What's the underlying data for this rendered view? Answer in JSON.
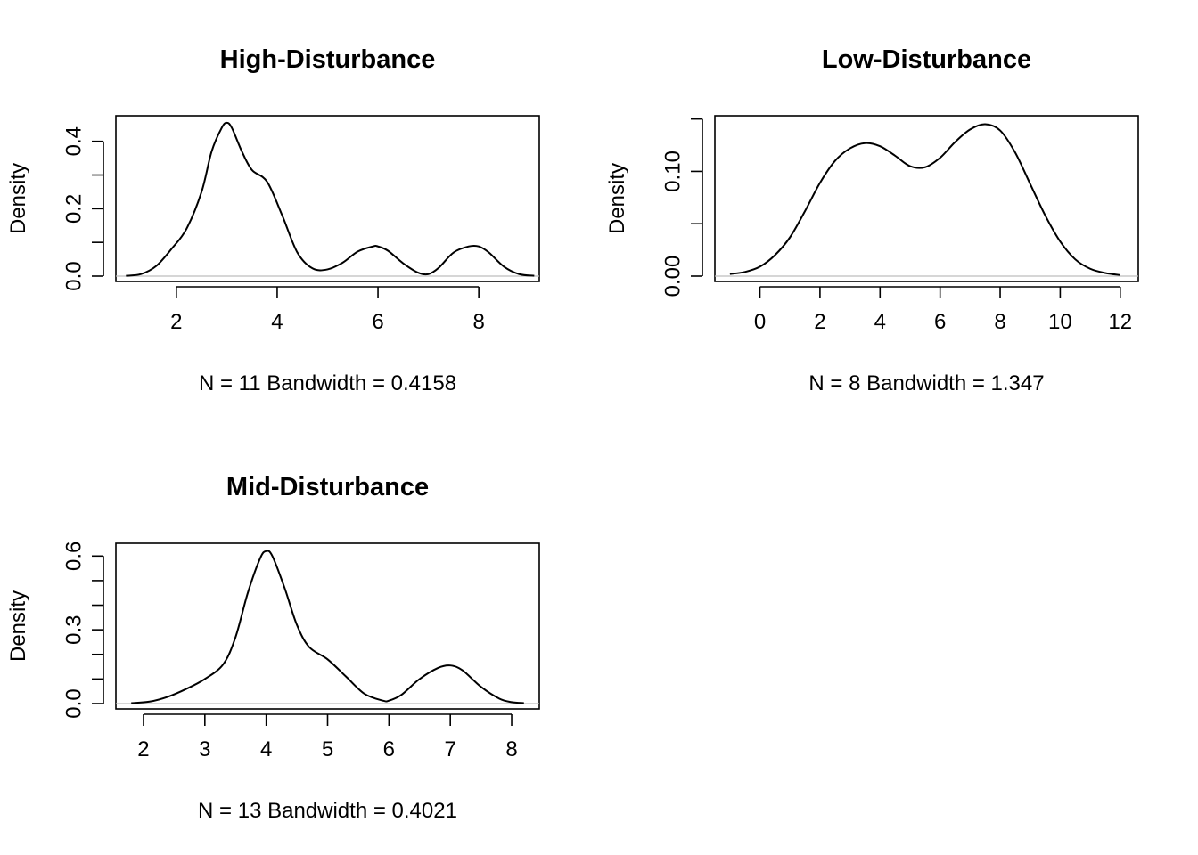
{
  "chart_data": [
    {
      "type": "line",
      "title": "High-Disturbance",
      "ylabel": "Density",
      "subtitle": "N = 11   Bandwidth = 0.4158",
      "xlim": [
        0.8,
        9.2
      ],
      "ylim": [
        0,
        0.46
      ],
      "xticks": [
        2,
        4,
        6,
        8
      ],
      "xtick_labels": [
        "2",
        "4",
        "6",
        "8"
      ],
      "yticks": [
        0.0,
        0.1,
        0.2,
        0.3,
        0.4
      ],
      "ytick_labels": [
        "0.0",
        "",
        "0.2",
        "",
        "0.4"
      ],
      "x": [
        1.0,
        1.3,
        1.6,
        1.9,
        2.2,
        2.5,
        2.7,
        2.9,
        3.0,
        3.1,
        3.3,
        3.5,
        3.8,
        4.1,
        4.4,
        4.7,
        5.0,
        5.3,
        5.6,
        5.9,
        6.0,
        6.2,
        6.5,
        6.8,
        7.0,
        7.2,
        7.5,
        7.8,
        8.0,
        8.2,
        8.5,
        8.8,
        9.1
      ],
      "y": [
        0.001,
        0.006,
        0.03,
        0.08,
        0.14,
        0.25,
        0.37,
        0.44,
        0.455,
        0.44,
        0.37,
        0.315,
        0.28,
        0.18,
        0.07,
        0.023,
        0.02,
        0.04,
        0.073,
        0.088,
        0.088,
        0.075,
        0.038,
        0.01,
        0.006,
        0.024,
        0.07,
        0.088,
        0.088,
        0.07,
        0.028,
        0.006,
        0.001
      ]
    },
    {
      "type": "line",
      "title": "Low-Disturbance",
      "ylabel": "Density",
      "subtitle": "N = 8   Bandwidth = 1.347",
      "xlim": [
        -1.5,
        12.6
      ],
      "ylim": [
        0,
        0.148
      ],
      "xticks": [
        0,
        2,
        4,
        6,
        8,
        10,
        12
      ],
      "xtick_labels": [
        "0",
        "2",
        "4",
        "6",
        "8",
        "10",
        "12"
      ],
      "yticks": [
        0.0,
        0.05,
        0.1,
        0.15
      ],
      "ytick_labels": [
        "0.00",
        "",
        "0.10",
        ""
      ],
      "x": [
        -1.0,
        -0.5,
        0.0,
        0.5,
        1.0,
        1.5,
        2.0,
        2.5,
        3.0,
        3.5,
        4.0,
        4.5,
        5.0,
        5.5,
        6.0,
        6.5,
        7.0,
        7.5,
        8.0,
        8.5,
        9.0,
        9.5,
        10.0,
        10.5,
        11.0,
        11.5,
        12.0
      ],
      "y": [
        0.002,
        0.004,
        0.009,
        0.02,
        0.037,
        0.062,
        0.089,
        0.11,
        0.122,
        0.127,
        0.124,
        0.115,
        0.105,
        0.104,
        0.113,
        0.128,
        0.14,
        0.145,
        0.139,
        0.118,
        0.088,
        0.058,
        0.033,
        0.016,
        0.007,
        0.003,
        0.001
      ]
    },
    {
      "type": "line",
      "title": "Mid-Disturbance",
      "ylabel": "Density",
      "subtitle": "N = 13   Bandwidth = 0.4021",
      "xlim": [
        1.55,
        8.45
      ],
      "ylim": [
        0,
        0.63
      ],
      "xticks": [
        2,
        3,
        4,
        5,
        6,
        7,
        8
      ],
      "xtick_labels": [
        "2",
        "3",
        "4",
        "5",
        "6",
        "7",
        "8"
      ],
      "yticks": [
        0.0,
        0.1,
        0.2,
        0.3,
        0.4,
        0.5,
        0.6
      ],
      "ytick_labels": [
        "0.0",
        "",
        "",
        "0.3",
        "",
        "",
        "0.6"
      ],
      "x": [
        1.8,
        2.1,
        2.4,
        2.7,
        3.0,
        3.3,
        3.5,
        3.7,
        3.9,
        4.0,
        4.1,
        4.3,
        4.5,
        4.7,
        5.0,
        5.3,
        5.6,
        5.9,
        6.0,
        6.2,
        6.5,
        6.8,
        7.0,
        7.2,
        7.5,
        7.8,
        8.0,
        8.2
      ],
      "y": [
        0.002,
        0.008,
        0.028,
        0.06,
        0.1,
        0.16,
        0.27,
        0.45,
        0.59,
        0.62,
        0.6,
        0.47,
        0.32,
        0.23,
        0.18,
        0.11,
        0.04,
        0.012,
        0.012,
        0.035,
        0.1,
        0.145,
        0.155,
        0.135,
        0.068,
        0.02,
        0.006,
        0.002
      ]
    }
  ]
}
